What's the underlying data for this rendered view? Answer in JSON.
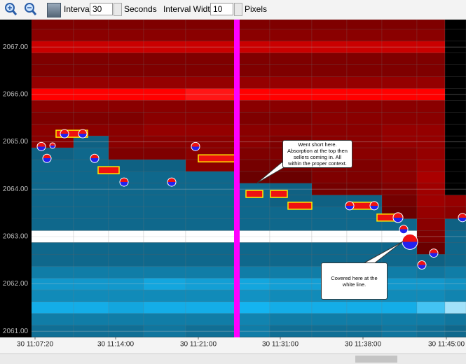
{
  "toolbar": {
    "interval_label": "Interval",
    "interval_value": 30,
    "interval_unit": "Seconds",
    "width_label": "Interval Width",
    "width_value": 10,
    "width_unit": "Pixels"
  },
  "chart_data": {
    "type": "heatmap",
    "xlim": [
      0,
      62
    ],
    "ylim": [
      2060.87,
      2067.58
    ],
    "xticks": [
      {
        "value": 0.5,
        "label": "30 11:07:20"
      },
      {
        "value": 12,
        "label": "30 11:14:00"
      },
      {
        "value": 23.8,
        "label": "30 11:21:00"
      },
      {
        "value": 35.5,
        "label": "30 11:31:00"
      },
      {
        "value": 47.3,
        "label": "30 11:38:00"
      },
      {
        "value": 59.2,
        "label": "30 11:45:00"
      }
    ],
    "yticks": [
      {
        "value": 2061,
        "label": "2061.00"
      },
      {
        "value": 2062,
        "label": "2062.00"
      },
      {
        "value": 2063,
        "label": "2063.00"
      },
      {
        "value": 2064,
        "label": "2064.00"
      },
      {
        "value": 2065,
        "label": "2065.00"
      },
      {
        "value": 2066,
        "label": "2066.00"
      },
      {
        "value": 2067,
        "label": "2067.00"
      }
    ],
    "heatmap": {
      "x_edges": [
        0,
        6,
        11,
        16,
        22,
        29,
        34,
        40,
        45,
        50,
        55,
        59,
        62
      ],
      "rows": [
        2061,
        2061.25,
        2061.5,
        2061.75,
        2062,
        2062.25,
        2062.5,
        2062.75,
        2063,
        2063.25,
        2063.5,
        2063.75,
        2064,
        2064.25,
        2064.5,
        2064.75,
        2065,
        2065.25,
        2065.5,
        2065.75,
        2066,
        2066.25,
        2066.5,
        2066.75,
        2067,
        2067.25,
        2067.5
      ],
      "values": [
        [
          -50,
          -50,
          -50,
          -55,
          -50,
          -60,
          -50,
          -50,
          -50,
          -55,
          -50,
          -45
        ],
        [
          -60,
          -60,
          -60,
          -60,
          -60,
          -65,
          -60,
          -60,
          -60,
          -60,
          -60,
          -55
        ],
        [
          -95,
          -95,
          -90,
          -95,
          -95,
          -100,
          -95,
          -95,
          -95,
          -95,
          -110,
          -130
        ],
        [
          -70,
          -70,
          -70,
          -70,
          -70,
          -75,
          -70,
          -70,
          -70,
          -70,
          -70,
          -65
        ],
        [
          -80,
          -80,
          -80,
          -90,
          -85,
          -90,
          -85,
          -85,
          -85,
          -80,
          -80,
          -75
        ],
        [
          -60,
          -60,
          -60,
          -60,
          -60,
          -60,
          -60,
          -60,
          -60,
          -60,
          -55,
          -60
        ],
        [
          -45,
          -45,
          -45,
          -45,
          -45,
          -45,
          -45,
          -45,
          -45,
          -45,
          -40,
          -45
        ],
        [
          -45,
          -45,
          -45,
          -45,
          -45,
          -45,
          -45,
          -45,
          -45,
          -45,
          30,
          -45
        ],
        [
          -150,
          -150,
          -150,
          -150,
          -150,
          -150,
          -150,
          -150,
          -150,
          -150,
          40,
          -45
        ],
        [
          -45,
          -45,
          -45,
          -45,
          -45,
          -45,
          -45,
          -45,
          -45,
          -45,
          45,
          -40
        ],
        [
          -45,
          -45,
          -45,
          -45,
          -45,
          -45,
          -45,
          -45,
          -45,
          30,
          50,
          45
        ],
        [
          -45,
          -45,
          -45,
          -45,
          -45,
          -45,
          -40,
          -40,
          -40,
          35,
          55,
          50
        ],
        [
          -45,
          -45,
          -45,
          -45,
          -45,
          -45,
          -40,
          35,
          35,
          40,
          55,
          0
        ],
        [
          -45,
          -45,
          -45,
          -45,
          -45,
          30,
          30,
          40,
          40,
          45,
          60,
          0
        ],
        [
          -45,
          -45,
          -40,
          -40,
          45,
          35,
          35,
          40,
          40,
          45,
          55,
          0
        ],
        [
          -40,
          -45,
          40,
          40,
          45,
          40,
          40,
          45,
          45,
          45,
          50,
          0
        ],
        [
          45,
          -40,
          45,
          45,
          45,
          45,
          40,
          45,
          45,
          50,
          50,
          0
        ],
        [
          45,
          45,
          45,
          50,
          50,
          45,
          45,
          45,
          45,
          50,
          50,
          0
        ],
        [
          40,
          40,
          40,
          45,
          45,
          40,
          40,
          45,
          45,
          45,
          45,
          0
        ],
        [
          45,
          45,
          45,
          45,
          45,
          45,
          45,
          45,
          45,
          45,
          45,
          0
        ],
        [
          100,
          100,
          100,
          100,
          110,
          100,
          100,
          100,
          100,
          100,
          100,
          0
        ],
        [
          50,
          50,
          50,
          50,
          50,
          50,
          50,
          50,
          50,
          50,
          50,
          0
        ],
        [
          40,
          40,
          40,
          40,
          40,
          40,
          40,
          40,
          40,
          40,
          40,
          0
        ],
        [
          40,
          40,
          40,
          40,
          40,
          40,
          40,
          40,
          40,
          40,
          40,
          0
        ],
        [
          75,
          75,
          75,
          75,
          75,
          75,
          75,
          75,
          75,
          75,
          75,
          0
        ],
        [
          45,
          45,
          45,
          45,
          45,
          45,
          45,
          45,
          45,
          45,
          45,
          0
        ],
        [
          40,
          40,
          40,
          40,
          40,
          40,
          40,
          40,
          40,
          40,
          40,
          0
        ]
      ]
    },
    "prints": {
      "x0": [
        3.5,
        23.8,
        30.6,
        34.1,
        36.6,
        45.5,
        49.3,
        9.5
      ],
      "x1": [
        8,
        29,
        33,
        36.5,
        40,
        48.7,
        52,
        12.5
      ],
      "y": [
        2065.17,
        2064.65,
        2063.9,
        2063.9,
        2063.65,
        2063.65,
        2063.4,
        2064.4
      ]
    },
    "trades": {
      "x": [
        1.4,
        2.2,
        3.0,
        4.7,
        7.3,
        9.0,
        13.2,
        20.0,
        23.4,
        45.4,
        48.9,
        52.3,
        53.1,
        54.0,
        55.7,
        57.4,
        61.5
      ],
      "y": [
        2064.9,
        2064.65,
        2064.92,
        2065.17,
        2065.17,
        2064.65,
        2064.15,
        2064.15,
        2064.9,
        2063.65,
        2063.65,
        2063.4,
        2063.15,
        2062.89,
        2062.4,
        2062.65,
        2063.4
      ],
      "size": [
        6,
        6,
        4,
        6,
        6,
        6,
        6,
        6,
        6,
        6,
        6,
        7,
        6,
        11,
        6,
        6,
        6
      ]
    },
    "marker": {
      "x": 29.3,
      "color": "#ff00ff"
    },
    "annotations": [
      {
        "text": "Went short here. Absorption at the top then sellers coming in. All within the proper context."
      },
      {
        "text": "Covered here at the white line."
      }
    ]
  }
}
